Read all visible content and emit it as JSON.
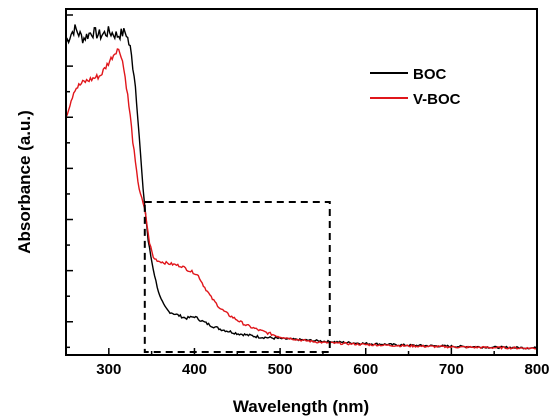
{
  "chart_data": {
    "type": "line",
    "xlabel": "Wavelength (nm)",
    "ylabel": "Absorbance (a.u.)",
    "xlim": [
      250,
      800
    ],
    "ylim": [
      0,
      1
    ],
    "x_ticks": [
      300,
      400,
      500,
      600,
      700,
      800
    ],
    "x_tick_labels": [
      "300",
      "400",
      "500",
      "600",
      "700",
      "800"
    ],
    "y_ticks_labeled": false,
    "legend_position": "top-right",
    "colors": {
      "BOC": "#000000",
      "V-BOC": "#e0161b"
    },
    "annotation": {
      "type": "dashed-rectangle",
      "x_range": [
        342,
        558
      ],
      "y_range": [
        0.0,
        0.445
      ]
    },
    "series": [
      {
        "name": "BOC",
        "x": [
          250,
          260,
          270,
          280,
          290,
          300,
          310,
          320,
          325,
          330,
          335,
          340,
          343,
          346,
          350,
          355,
          360,
          365,
          370,
          380,
          390,
          400,
          410,
          420,
          430,
          450,
          475,
          500,
          550,
          600,
          650,
          700,
          750,
          800
        ],
        "y": [
          0.92,
          0.96,
          0.93,
          0.95,
          0.94,
          0.95,
          0.94,
          0.95,
          0.9,
          0.82,
          0.66,
          0.48,
          0.41,
          0.33,
          0.27,
          0.21,
          0.16,
          0.135,
          0.12,
          0.11,
          0.1,
          0.105,
          0.09,
          0.078,
          0.068,
          0.055,
          0.045,
          0.04,
          0.032,
          0.025,
          0.02,
          0.017,
          0.014,
          0.012
        ]
      },
      {
        "name": "V-BOC",
        "x": [
          250,
          260,
          270,
          280,
          290,
          300,
          310,
          315,
          320,
          325,
          330,
          335,
          340,
          343,
          347,
          352,
          358,
          365,
          375,
          385,
          395,
          400,
          405,
          410,
          420,
          430,
          440,
          450,
          460,
          475,
          500,
          525,
          550,
          600,
          650,
          700,
          750,
          800
        ],
        "y": [
          0.7,
          0.78,
          0.8,
          0.81,
          0.82,
          0.86,
          0.9,
          0.88,
          0.8,
          0.7,
          0.58,
          0.49,
          0.44,
          0.41,
          0.33,
          0.28,
          0.27,
          0.265,
          0.26,
          0.255,
          0.24,
          0.235,
          0.225,
          0.2,
          0.16,
          0.13,
          0.11,
          0.095,
          0.08,
          0.065,
          0.045,
          0.035,
          0.028,
          0.022,
          0.018,
          0.015,
          0.013,
          0.011
        ]
      }
    ]
  }
}
